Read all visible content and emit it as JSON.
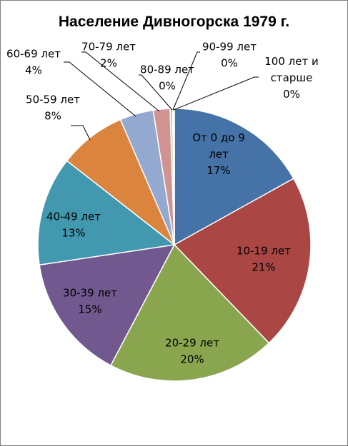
{
  "chart_data": {
    "type": "pie",
    "title": "Население Дивногорска 1979 г.",
    "slices": [
      {
        "label": "От 0 до 9 лет",
        "value": 17,
        "percent": "17%",
        "color": "#4572A7"
      },
      {
        "label": "10-19 лет",
        "value": 21,
        "percent": "21%",
        "color": "#AA4643"
      },
      {
        "label": "20-29 лет",
        "value": 20,
        "percent": "20%",
        "color": "#89A54E"
      },
      {
        "label": "30-39 лет",
        "value": 15,
        "percent": "15%",
        "color": "#71588F"
      },
      {
        "label": "40-49 лет",
        "value": 13,
        "percent": "13%",
        "color": "#4198AF"
      },
      {
        "label": "50-59 лет",
        "value": 8,
        "percent": "8%",
        "color": "#DB843D"
      },
      {
        "label": "60-69 лет",
        "value": 4,
        "percent": "4%",
        "color": "#93A9CF"
      },
      {
        "label": "70-79 лет",
        "value": 2,
        "percent": "2%",
        "color": "#D19392"
      },
      {
        "label": "80-89 лет",
        "value": 0.3,
        "percent": "0%",
        "color": "#B9CD96"
      },
      {
        "label": "90-99 лет",
        "value": 0.15,
        "percent": "0%",
        "color": "#A99BBD"
      },
      {
        "label": "100 лет и старше",
        "value": 0.05,
        "percent": "0%",
        "color": "#91C3D5"
      }
    ]
  }
}
